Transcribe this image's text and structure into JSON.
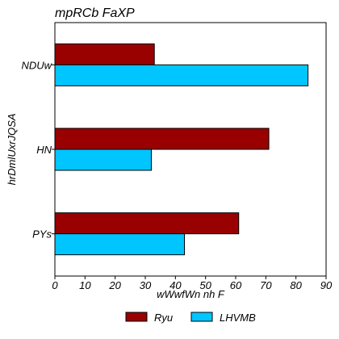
{
  "chart_data": {
    "type": "bar",
    "orientation": "horizontal",
    "title": "mpRCb FaXP",
    "xlabel": "wWwfWn nh  F",
    "ylabel": "hrDmlUxrJQSA",
    "categories": [
      "NDUw",
      "HN",
      "PYs"
    ],
    "series": [
      {
        "name": "Ryu",
        "color": "#990000",
        "values": [
          33,
          71,
          61
        ]
      },
      {
        "name": "LHVMB",
        "color": "#00c5ff",
        "values": [
          84,
          32,
          43
        ]
      }
    ],
    "xlim": [
      0,
      90
    ],
    "xticks": [
      "0",
      "10",
      "20",
      "30",
      "40",
      "50",
      "60",
      "70",
      "80",
      "90"
    ],
    "grid": false,
    "legend_position": "bottom"
  }
}
